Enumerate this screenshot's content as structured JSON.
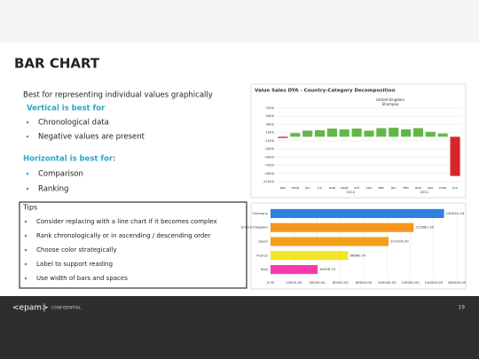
{
  "header": {
    "title": "BAR CHART"
  },
  "left": {
    "intro": "Best for representing individual values graphically",
    "vertical": {
      "heading": "Vertical is best for",
      "items": [
        "Chronological data",
        "Negative values are present"
      ]
    },
    "horizontal": {
      "heading": "Horizontal is best for:",
      "items": [
        "Comparison",
        "Ranking"
      ]
    }
  },
  "tips": {
    "title": "Tips",
    "items": [
      "Consider replacing with a line chart if it becomes complex",
      "Rank chronologically or in ascending / descending order",
      "Choose color strategically",
      "Label to support reading",
      "Use width of bars and spaces"
    ]
  },
  "figures": [
    {
      "type": "bar",
      "title": "Value Sales DYA - Country-Category Decomposition",
      "legend": [
        "United Kingdom",
        "Shampoo"
      ],
      "categories": [
        "apr",
        "mag",
        "jun",
        "jul",
        "aug",
        "sept",
        "oct",
        "nov",
        "dec",
        "jan",
        "feb",
        "mar",
        "apr",
        "may",
        "jun"
      ],
      "years": [
        "2010",
        "2011"
      ],
      "values": [
        -300,
        900,
        1500,
        1600,
        2000,
        1800,
        2000,
        1500,
        2100,
        2200,
        1800,
        2100,
        1200,
        800,
        -9600
      ],
      "colors": {
        "positive": "#63b648",
        "negative": "#d7262b"
      },
      "ylim": [
        -11000,
        7000
      ],
      "yticks": [
        7000,
        5000,
        3000,
        1000,
        -1000,
        -3000,
        -5000,
        -7000,
        -9000,
        -11000
      ],
      "grid": true
    },
    {
      "type": "barh",
      "categories": [
        "Germany",
        "United Kingdom",
        "Spain",
        "France",
        "Italy"
      ],
      "values": [
        149024.16,
        122880.16,
        101426.3,
        66680.7,
        40456.7
      ],
      "value_labels": [
        "149024.16",
        "122880.16",
        "101426.30",
        "66680.70",
        "40456.70"
      ],
      "colors": [
        "#2f7fe0",
        "#f7961e",
        "#f3a01a",
        "#f2e52a",
        "#f53aaf"
      ],
      "xlim": [
        0,
        160000
      ],
      "xticks": [
        {
          "value": 0,
          "label": "0.00"
        },
        {
          "value": 20000,
          "label": "20000.00"
        },
        {
          "value": 40000,
          "label": "40000.00"
        },
        {
          "value": 60000,
          "label": "60000.00"
        },
        {
          "value": 80000,
          "label": "80000.00"
        },
        {
          "value": 100000,
          "label": "100000.00"
        },
        {
          "value": 120000,
          "label": "120000.00"
        },
        {
          "value": 140000,
          "label": "140000.00"
        },
        {
          "value": 160000,
          "label": "160000.00"
        }
      ],
      "grid": true
    }
  ],
  "footer": {
    "logo": "<epam>",
    "confidential": "CONFIDENTIAL",
    "page": "19"
  }
}
